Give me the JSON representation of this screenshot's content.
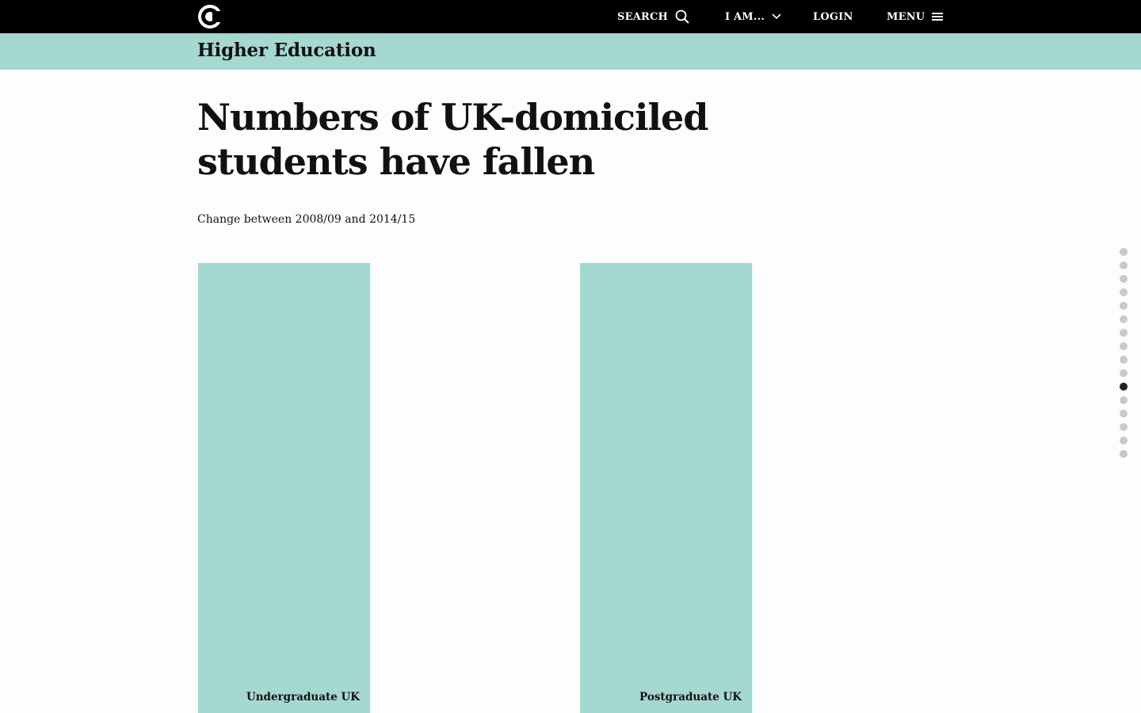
{
  "header": {
    "logo_icon": "c-logo-icon",
    "nav": {
      "search_label": "SEARCH",
      "iam_label": "I AM...",
      "login_label": "LOGIN",
      "menu_label": "MENU"
    }
  },
  "section": {
    "title": "Higher Education",
    "color": "#a5d8d0"
  },
  "main": {
    "title": "Numbers of UK-domiciled students have fallen",
    "subtitle": "Change between 2008/09 and 2014/15"
  },
  "chart_data": {
    "type": "bar",
    "title": "",
    "categories": [
      "Undergraduate UK",
      "Postgraduate UK"
    ],
    "bar_color": "#a5d8d0"
  },
  "progress": {
    "total": 16,
    "active_index": 10
  }
}
